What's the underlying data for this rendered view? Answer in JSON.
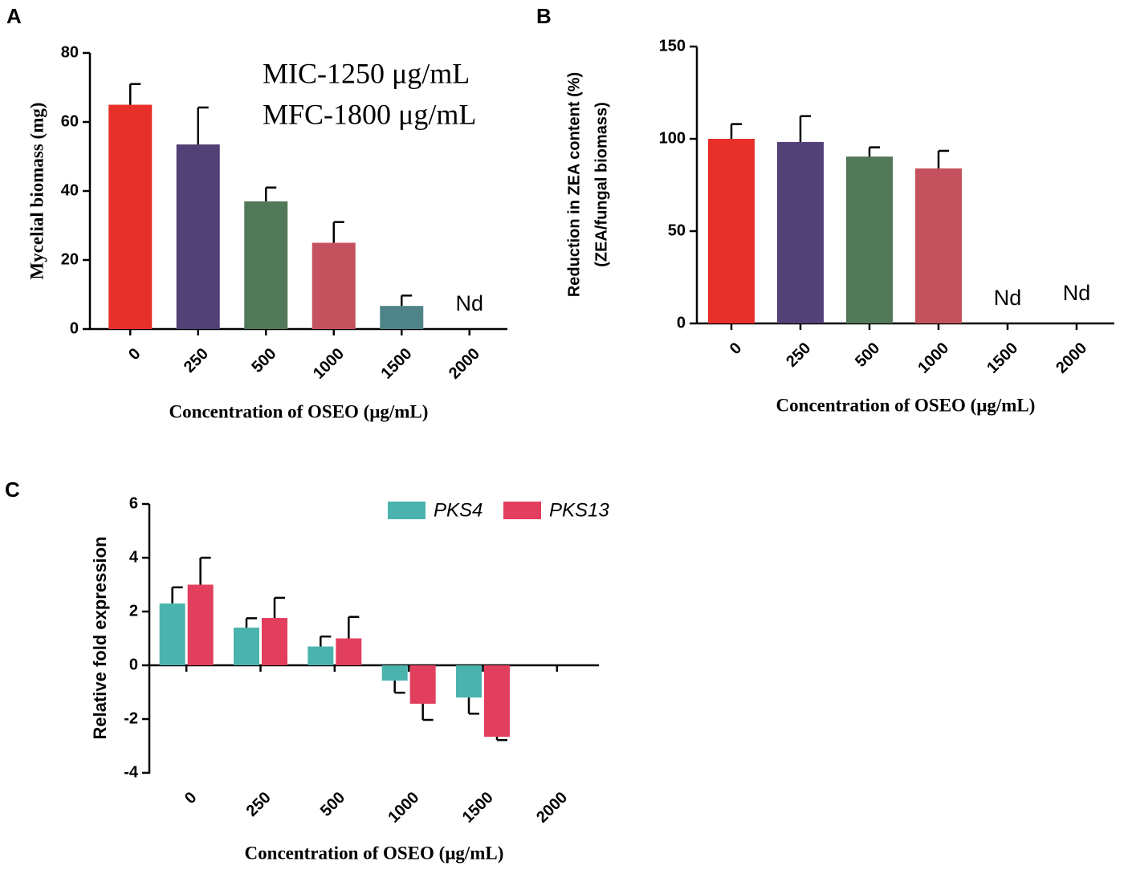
{
  "chart_data": [
    {
      "type": "bar",
      "label": "A",
      "ylabel": "Mycelial biomass (mg)",
      "xlabel": "Concentration of OSEO (μg/mL)",
      "annotations": [
        "MIC-1250 μg/mL",
        "MFC-1800 μg/mL"
      ],
      "categories": [
        "0",
        "250",
        "500",
        "1000",
        "1500",
        "2000"
      ],
      "values": [
        65,
        53.5,
        37,
        25,
        6.7,
        null
      ],
      "errors": [
        6,
        10.7,
        4,
        6,
        3,
        null
      ],
      "value_labels": [
        null,
        null,
        null,
        null,
        null,
        "Nd"
      ],
      "colors": [
        "#e8302a",
        "#514176",
        "#52785a",
        "#c4525e",
        "#4e8487",
        "#888888"
      ],
      "ylim": [
        0,
        80
      ],
      "yticks": [
        0,
        20,
        40,
        60,
        80
      ]
    },
    {
      "type": "bar",
      "label": "B",
      "ylabel": [
        "Reduction in ZEA content (%)",
        "(ZEA/fungal biomass)"
      ],
      "xlabel": "Concentration of OSEO (μg/mL)",
      "categories": [
        "0",
        "250",
        "500",
        "1000",
        "1500",
        "2000"
      ],
      "values": [
        100,
        98.3,
        90.4,
        84,
        null,
        null
      ],
      "errors": [
        8,
        14,
        5,
        9.5,
        null,
        null
      ],
      "value_labels": [
        null,
        null,
        null,
        null,
        "Nd",
        "Nd"
      ],
      "colors": [
        "#e8302a",
        "#514176",
        "#52785a",
        "#c4525e",
        "#888888",
        "#888888"
      ],
      "ylim": [
        0,
        150
      ],
      "yticks": [
        0,
        50,
        100,
        150
      ]
    },
    {
      "type": "bar",
      "label": "C",
      "ylabel": "Relative fold expression",
      "xlabel": "Concentration of OSEO (μg/mL)",
      "categories": [
        "0",
        "250",
        "500",
        "1000",
        "1500",
        "2000"
      ],
      "series": [
        {
          "name": "PKS4",
          "color": "#4bb3ae",
          "values": [
            2.3,
            1.4,
            0.7,
            -0.57,
            -1.2,
            null
          ],
          "errors": [
            0.6,
            0.35,
            0.37,
            0.45,
            0.6,
            null
          ]
        },
        {
          "name": "PKS13",
          "color": "#e23f5e",
          "values": [
            3.0,
            1.76,
            1.0,
            -1.43,
            -2.66,
            null
          ],
          "errors": [
            1.0,
            0.75,
            0.8,
            0.6,
            0.12,
            null
          ]
        }
      ],
      "ylim": [
        -4,
        6
      ],
      "yticks": [
        -4,
        -2,
        0,
        2,
        4,
        6
      ]
    }
  ]
}
